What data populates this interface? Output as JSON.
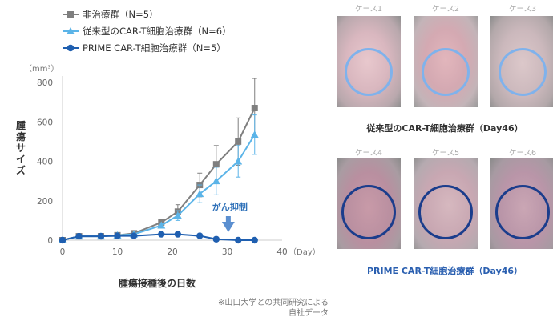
{
  "chart_data": {
    "type": "line",
    "xlabel": "腫瘍接種後の日数",
    "ylabel": "腫瘍サイズ",
    "yunit": "（mm³）",
    "xunit": "（Day）",
    "xlim": [
      0,
      40
    ],
    "ylim": [
      0,
      800
    ],
    "xticks": [
      0,
      10,
      20,
      30,
      40
    ],
    "yticks": [
      0,
      200,
      400,
      600,
      800
    ],
    "grid": false,
    "legend_position": "top-left",
    "annotation": "がん抑制",
    "series": [
      {
        "name": "非治療群（N=5）",
        "color": "#7f7f7f",
        "marker": "square",
        "x": [
          0,
          3,
          7,
          10,
          13,
          18,
          21,
          25,
          28,
          32,
          35
        ],
        "y": [
          0,
          20,
          20,
          25,
          35,
          90,
          145,
          280,
          385,
          500,
          670
        ],
        "err": [
          0,
          0,
          0,
          0,
          0,
          15,
          35,
          60,
          95,
          120,
          150
        ]
      },
      {
        "name": "従来型のCAR-T細胞治療群（N=6）",
        "color": "#5bb4e8",
        "marker": "triangle",
        "x": [
          0,
          3,
          7,
          10,
          13,
          18,
          21,
          25,
          28,
          32,
          35
        ],
        "y": [
          0,
          20,
          20,
          25,
          30,
          75,
          125,
          235,
          300,
          400,
          535
        ],
        "err": [
          0,
          0,
          0,
          0,
          0,
          12,
          25,
          45,
          70,
          80,
          100
        ]
      },
      {
        "name": "PRIME CAR-T細胞治療群（N=5）",
        "color": "#1f5fb0",
        "marker": "circle",
        "x": [
          0,
          3,
          7,
          10,
          13,
          18,
          21,
          25,
          28,
          32,
          35
        ],
        "y": [
          0,
          20,
          20,
          22,
          22,
          30,
          30,
          22,
          5,
          0,
          0
        ],
        "err": [
          0,
          0,
          0,
          0,
          0,
          0,
          0,
          0,
          0,
          0,
          0
        ]
      }
    ]
  },
  "note_lines": [
    "※山口大学との共同研究による",
    "自社データ"
  ],
  "photos": {
    "top_row": [
      "ケース1",
      "ケース2",
      "ケース3"
    ],
    "top_caption": "従来型のCAR-T細胞治療群（Day46）",
    "bottom_row": [
      "ケース4",
      "ケース5",
      "ケース6"
    ],
    "bottom_caption": "PRIME CAR-T細胞治療群（Day46）",
    "top_ring_color": "#7fb2ec",
    "bottom_ring_color": "#1b3d8c",
    "top_caption_color": "#333333",
    "bottom_caption_color": "#2a5fb0"
  }
}
